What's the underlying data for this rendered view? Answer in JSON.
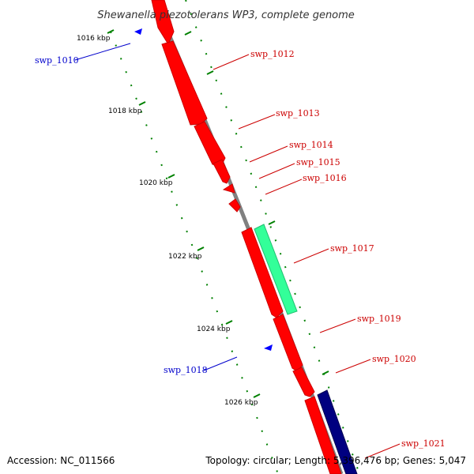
{
  "title": "Shewanella piezotolerans WP3, complete genome",
  "footer": {
    "accession": "Accession: NC_011566",
    "topology": "Topology: circular; Length: 5,396,476 bp; Genes: 5,047"
  },
  "scale": {
    "labels": [
      "1016 kbp",
      "1018 kbp",
      "1020 kbp",
      "1022 kbp",
      "1024 kbp",
      "1026 kbp"
    ]
  },
  "genes": {
    "swp_1010": "swp_1010",
    "swp_1012": "swp_1012",
    "swp_1013": "swp_1013",
    "swp_1014": "swp_1014",
    "swp_1015": "swp_1015",
    "swp_1016": "swp_1016",
    "swp_1017": "swp_1017",
    "swp_1018": "swp_1018",
    "swp_1019": "swp_1019",
    "swp_1020": "swp_1020",
    "swp_1021": "swp_1021"
  },
  "colors": {
    "forward_gene": "#ff0000",
    "reverse_gene": "#0000ff",
    "rna_gene": "#33ff99",
    "other_gene": "#000080",
    "backbone": "#808080",
    "ticks": "#008000",
    "forward_label": "#cc0000",
    "reverse_label": "#0000cc"
  }
}
